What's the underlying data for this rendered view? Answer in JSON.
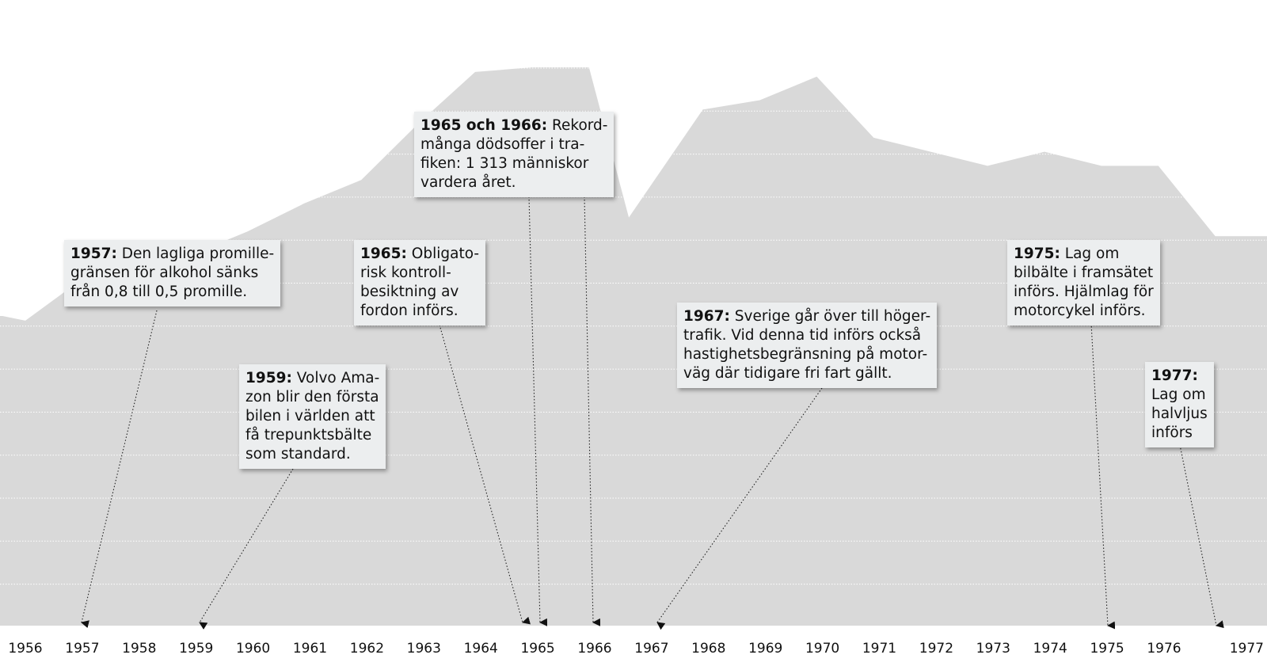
{
  "chart_data": {
    "type": "area",
    "title": "",
    "xlabel": "",
    "ylabel": "",
    "x_ticks": [
      "1956",
      "1957",
      "1958",
      "1959",
      "1960",
      "1961",
      "1962",
      "1963",
      "1964",
      "1965",
      "1966",
      "1967",
      "1968",
      "1969",
      "1970",
      "1971",
      "1972",
      "1973",
      "1974",
      "1975",
      "1976",
      "1977"
    ],
    "series_points": [
      {
        "year": 1955.6,
        "rel": 0.66
      },
      {
        "year": 1956.0,
        "rel": 0.65
      },
      {
        "year": 1956.9,
        "rel": 0.73
      },
      {
        "year": 1957.9,
        "rel": 0.72
      },
      {
        "year": 1958.9,
        "rel": 0.79
      },
      {
        "year": 1959.9,
        "rel": 0.84
      },
      {
        "year": 1960.9,
        "rel": 0.9
      },
      {
        "year": 1961.9,
        "rel": 0.95
      },
      {
        "year": 1962.9,
        "rel": 1.07
      },
      {
        "year": 1963.9,
        "rel": 1.18
      },
      {
        "year": 1964.9,
        "rel": 1.19
      },
      {
        "year": 1965.9,
        "rel": 1.19
      },
      {
        "year": 1966.6,
        "rel": 0.87
      },
      {
        "year": 1967.9,
        "rel": 1.1
      },
      {
        "year": 1968.9,
        "rel": 1.12
      },
      {
        "year": 1969.9,
        "rel": 1.17
      },
      {
        "year": 1970.9,
        "rel": 1.04
      },
      {
        "year": 1971.9,
        "rel": 1.01
      },
      {
        "year": 1972.9,
        "rel": 0.98
      },
      {
        "year": 1973.9,
        "rel": 1.01
      },
      {
        "year": 1974.9,
        "rel": 0.98
      },
      {
        "year": 1975.9,
        "rel": 0.98
      },
      {
        "year": 1976.9,
        "rel": 0.83
      },
      {
        "year": 1977.4,
        "rel": 0.83
      }
    ],
    "grid": true,
    "area_color": "#d9d9d9",
    "grid_color": "#ffffff",
    "annotations": [
      {
        "id": "1957",
        "year_label": "1957:",
        "text_lines": [
          "Den lagliga promille-",
          "gränsen för alkohol sänks",
          "från 0,8 till 0,5 promille."
        ]
      },
      {
        "id": "1959",
        "year_label": "1959:",
        "text_lines": [
          "Volvo Ama-",
          "zon blir den första",
          "bilen i världen att",
          "få trepunktsbälte",
          "som standard."
        ]
      },
      {
        "id": "1965a",
        "year_label": "1965:",
        "text_lines": [
          "Obligato-",
          "risk kontroll-",
          "besiktning av",
          "fordon införs."
        ]
      },
      {
        "id": "1965b",
        "year_label": "1965 och 1966:",
        "text_lines": [
          "Rekord-",
          "många dödsoffer i tra-",
          "fiken: 1 313 människor",
          "vardera året."
        ]
      },
      {
        "id": "1967",
        "year_label": "1967:",
        "text_lines": [
          "Sverige går över till höger-",
          "trafik. Vid denna tid införs också",
          "hastighetsbegränsning på motor-",
          "väg där tidigare fri fart gällt."
        ]
      },
      {
        "id": "1975",
        "year_label": "1975:",
        "text_lines": [
          "Lag om",
          "bilbälte i framsätet",
          "införs. Hjälmlag för",
          "motorcykel införs."
        ]
      },
      {
        "id": "1977",
        "year_label": "1977:",
        "text_lines": [
          "",
          "Lag om",
          "halvljus",
          "införs"
        ]
      }
    ]
  }
}
